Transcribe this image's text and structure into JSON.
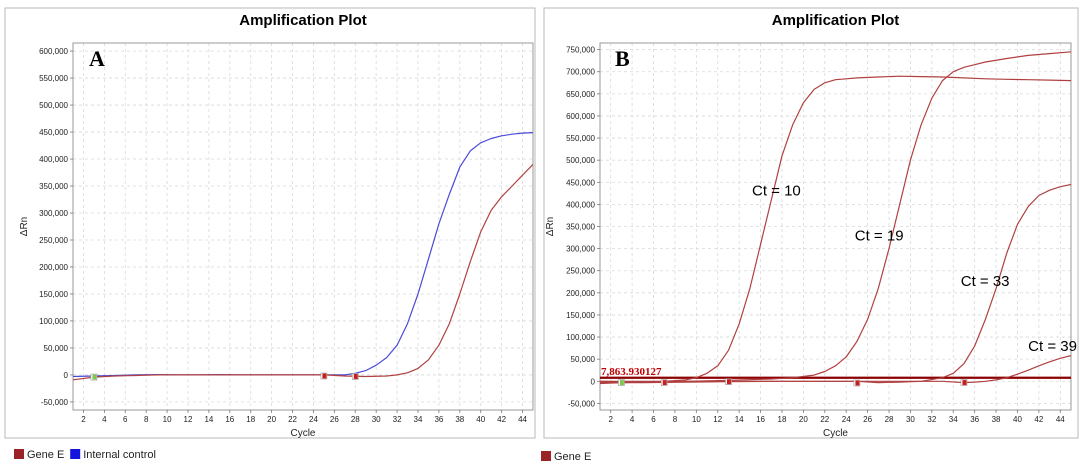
{
  "chart_data": [
    {
      "type": "line",
      "panel_letter": "A",
      "title": "Amplification Plot",
      "xlabel": "Cycle",
      "ylabel": "ΔRn",
      "xlim": [
        1,
        45
      ],
      "ylim": [
        -65000,
        615000
      ],
      "xticks": [
        2,
        4,
        6,
        8,
        10,
        12,
        14,
        16,
        18,
        20,
        22,
        24,
        26,
        28,
        30,
        32,
        34,
        36,
        38,
        40,
        42,
        44
      ],
      "yticks": [
        -50000,
        0,
        50000,
        100000,
        150000,
        200000,
        250000,
        300000,
        350000,
        400000,
        450000,
        500000,
        550000,
        600000
      ],
      "ytick_labels": [
        "-50,000",
        "0",
        "50,000",
        "100,000",
        "150,000",
        "200,000",
        "250,000",
        "300,000",
        "350,000",
        "400,000",
        "450,000",
        "500,000",
        "550,000",
        "600,000"
      ],
      "grid": true,
      "series": [
        {
          "name": "Internal control",
          "color": "#4a4ad6",
          "x": [
            1,
            3,
            5,
            7,
            9,
            11,
            13,
            15,
            17,
            19,
            21,
            23,
            25,
            27,
            28,
            29,
            30,
            31,
            32,
            33,
            34,
            35,
            36,
            37,
            38,
            39,
            40,
            41,
            42,
            43,
            44,
            45
          ],
          "y": [
            -3000,
            -2000,
            -1000,
            0,
            500,
            0,
            0,
            500,
            0,
            0,
            0,
            0,
            0,
            0,
            3000,
            8000,
            18000,
            32000,
            55000,
            95000,
            150000,
            215000,
            280000,
            335000,
            385000,
            415000,
            430000,
            438000,
            443000,
            446000,
            448000,
            449000
          ]
        },
        {
          "name": "Gene E",
          "color": "#b04040",
          "x": [
            1,
            3,
            5,
            7,
            9,
            11,
            13,
            15,
            17,
            19,
            21,
            23,
            25,
            27,
            29,
            31,
            32,
            33,
            34,
            35,
            36,
            37,
            38,
            39,
            40,
            41,
            42,
            43,
            44,
            45
          ],
          "y": [
            -9000,
            -4000,
            -2000,
            -1000,
            0,
            0,
            0,
            0,
            0,
            0,
            0,
            0,
            0,
            -2000,
            -3000,
            -2000,
            0,
            4000,
            12000,
            28000,
            55000,
            95000,
            150000,
            210000,
            265000,
            305000,
            330000,
            350000,
            370000,
            390000
          ]
        }
      ],
      "markers": [
        {
          "x": 3,
          "y": -4000,
          "color": "#7ec850"
        },
        {
          "x": 25,
          "y": -2000,
          "color": "#c81e1e"
        },
        {
          "x": 28,
          "y": -3000,
          "color": "#c81e1e"
        }
      ],
      "legend": [
        {
          "label": "Gene E",
          "color": "#9b2226"
        },
        {
          "label": "Internal control",
          "color": "#1414dc"
        }
      ]
    },
    {
      "type": "line",
      "panel_letter": "B",
      "title": "Amplification Plot",
      "xlabel": "Cycle",
      "ylabel": "ΔRn",
      "xlim": [
        1,
        45
      ],
      "ylim": [
        -65000,
        765000
      ],
      "xticks": [
        2,
        4,
        6,
        8,
        10,
        12,
        14,
        16,
        18,
        20,
        22,
        24,
        26,
        28,
        30,
        32,
        34,
        36,
        38,
        40,
        42,
        44
      ],
      "yticks": [
        -50000,
        0,
        50000,
        100000,
        150000,
        200000,
        250000,
        300000,
        350000,
        400000,
        450000,
        500000,
        550000,
        600000,
        650000,
        700000,
        750000
      ],
      "ytick_labels": [
        "-50,000",
        "0",
        "50,000",
        "100,000",
        "150,000",
        "200,000",
        "250,000",
        "300,000",
        "350,000",
        "400,000",
        "450,000",
        "500,000",
        "550,000",
        "600,000",
        "650,000",
        "700,000",
        "750,000"
      ],
      "grid": true,
      "threshold": {
        "value": 7863.930127,
        "label": "7,863.930127",
        "color": "#8b0000"
      },
      "series": [
        {
          "color": "#b04040",
          "x": [
            1,
            3,
            5,
            7,
            9,
            10,
            11,
            12,
            13,
            14,
            15,
            16,
            17,
            18,
            19,
            20,
            21,
            22,
            23,
            24,
            25,
            27,
            29,
            31,
            33,
            35,
            37,
            39,
            41,
            43,
            45
          ],
          "y": [
            -5000,
            -3000,
            -2000,
            0,
            3000,
            8000,
            18000,
            35000,
            70000,
            130000,
            210000,
            310000,
            410000,
            510000,
            580000,
            630000,
            660000,
            675000,
            682000,
            684000,
            686000,
            688000,
            690000,
            689000,
            688000,
            686000,
            684000,
            683000,
            682000,
            681000,
            680000
          ]
        },
        {
          "color": "#b04040",
          "x": [
            1,
            5,
            9,
            13,
            17,
            19,
            21,
            22,
            23,
            24,
            25,
            26,
            27,
            28,
            29,
            30,
            31,
            32,
            33,
            34,
            35,
            36,
            37,
            39,
            41,
            43,
            45
          ],
          "y": [
            0,
            -2000,
            0,
            2000,
            5000,
            8000,
            14000,
            22000,
            35000,
            55000,
            90000,
            140000,
            210000,
            300000,
            400000,
            500000,
            580000,
            640000,
            680000,
            700000,
            710000,
            716000,
            722000,
            730000,
            737000,
            741000,
            745000
          ]
        },
        {
          "color": "#b04040",
          "x": [
            1,
            5,
            9,
            13,
            17,
            21,
            25,
            27,
            29,
            31,
            33,
            34,
            35,
            36,
            37,
            38,
            39,
            40,
            41,
            42,
            43,
            44,
            45
          ],
          "y": [
            -3000,
            -3000,
            -2000,
            -1000,
            0,
            0,
            0,
            -3000,
            -2000,
            0,
            8000,
            18000,
            40000,
            80000,
            140000,
            210000,
            290000,
            355000,
            395000,
            420000,
            432000,
            440000,
            445000
          ]
        },
        {
          "color": "#b04040",
          "x": [
            1,
            5,
            9,
            13,
            17,
            21,
            25,
            29,
            33,
            35,
            36,
            37,
            38,
            39,
            40,
            41,
            42,
            43,
            44,
            45
          ],
          "y": [
            0,
            0,
            0,
            0,
            0,
            0,
            0,
            0,
            0,
            -3000,
            -2000,
            0,
            3000,
            8000,
            16000,
            25000,
            35000,
            44000,
            52000,
            58000
          ]
        }
      ],
      "annotations": [
        {
          "text": "Ct = 10",
          "x": 15.2,
          "y": 420000
        },
        {
          "text": "Ct = 19",
          "x": 24.8,
          "y": 318000
        },
        {
          "text": "Ct = 33",
          "x": 34.7,
          "y": 215000
        },
        {
          "text": "Ct = 39",
          "x": 41.0,
          "y": 68000
        }
      ],
      "markers": [
        {
          "x": 3,
          "y": -3000,
          "color": "#7ec850"
        },
        {
          "x": 7,
          "y": -3000,
          "color": "#c81e1e"
        },
        {
          "x": 13,
          "y": -1000,
          "color": "#c81e1e"
        },
        {
          "x": 25,
          "y": -4000,
          "color": "#c81e1e"
        },
        {
          "x": 35,
          "y": -3000,
          "color": "#c81e1e"
        }
      ],
      "legend": [
        {
          "label": "Gene E",
          "color": "#9b2226"
        }
      ]
    }
  ]
}
